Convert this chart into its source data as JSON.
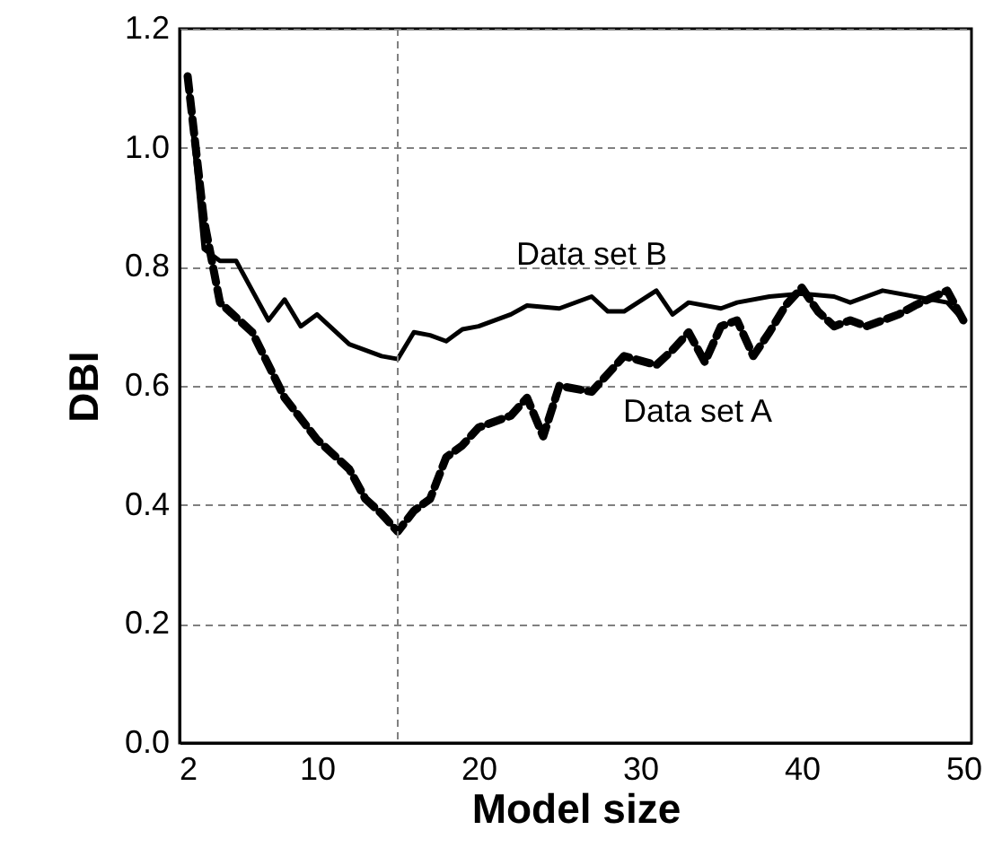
{
  "chart_data": {
    "type": "line",
    "xlabel": "Model size",
    "ylabel": "DBI",
    "xlim": [
      1.5,
      50.5
    ],
    "xticks": [
      2,
      10,
      20,
      30,
      40,
      50
    ],
    "ylim": [
      0,
      1.2
    ],
    "yticks": [
      {
        "value": 0,
        "label": "0.0"
      },
      0.2,
      0.4,
      0.6,
      0.8,
      {
        "value": 1,
        "label": "1.0"
      },
      1.2
    ],
    "grid": "y",
    "ref_lines": [
      {
        "axis": "x",
        "value": 15,
        "line_style": "dashed",
        "color": "#808080"
      }
    ],
    "series": [
      {
        "name": "Data set B",
        "color": "#000000",
        "line_style": "solid",
        "x": [
          2,
          3,
          4,
          5,
          6,
          7,
          8,
          9,
          10,
          12,
          14,
          15,
          16,
          17,
          18,
          19,
          20,
          22,
          23,
          25,
          27,
          28,
          29,
          31,
          32,
          33,
          35,
          36,
          38,
          40,
          42,
          43,
          45,
          47,
          49,
          50
        ],
        "values": [
          1.12,
          0.83,
          0.81,
          0.81,
          0.76,
          0.71,
          0.745,
          0.7,
          0.72,
          0.67,
          0.65,
          0.645,
          0.69,
          0.685,
          0.675,
          0.695,
          0.7,
          0.72,
          0.735,
          0.73,
          0.75,
          0.725,
          0.725,
          0.76,
          0.72,
          0.74,
          0.73,
          0.74,
          0.75,
          0.755,
          0.75,
          0.74,
          0.76,
          0.75,
          0.74,
          0.71
        ]
      },
      {
        "name": "Data set A",
        "color": "#000000",
        "line_style": "dashed",
        "x": [
          2,
          3,
          4,
          6,
          8,
          10,
          12,
          13,
          14,
          15,
          16,
          17,
          18,
          19,
          20,
          22,
          23,
          24,
          25,
          27,
          29,
          31,
          32,
          33,
          34,
          35,
          36,
          37,
          38,
          39,
          40,
          41,
          42,
          43,
          44,
          46,
          47,
          49,
          50
        ],
        "values": [
          1.12,
          0.88,
          0.74,
          0.69,
          0.58,
          0.51,
          0.46,
          0.41,
          0.385,
          0.355,
          0.39,
          0.41,
          0.48,
          0.5,
          0.53,
          0.55,
          0.58,
          0.515,
          0.6,
          0.59,
          0.65,
          0.635,
          0.66,
          0.69,
          0.64,
          0.7,
          0.71,
          0.65,
          0.69,
          0.735,
          0.765,
          0.725,
          0.7,
          0.71,
          0.7,
          0.72,
          0.735,
          0.76,
          0.71
        ]
      }
    ]
  }
}
